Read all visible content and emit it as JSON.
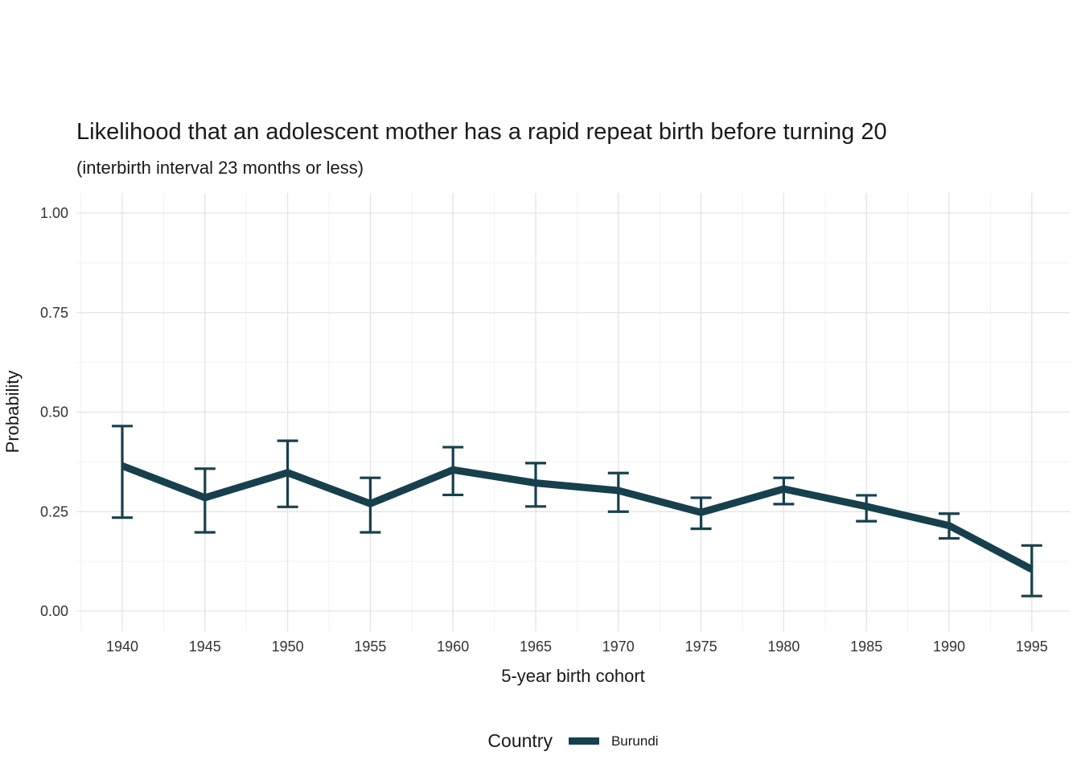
{
  "colors": {
    "background": "#ffffff",
    "grid_major": "#e3e3e3",
    "grid_minor": "#f2f2f2",
    "title_text": "#1a1a1a",
    "tick_text": "#333333"
  },
  "chart_data": {
    "type": "line",
    "title": "Likelihood that an adolescent mother has a rapid repeat birth before turning 20",
    "subtitle": "(interbirth interval 23 months or less)",
    "xlabel": "5-year birth cohort",
    "ylabel": "Probability",
    "x": [
      1940,
      1945,
      1950,
      1955,
      1960,
      1965,
      1970,
      1975,
      1980,
      1985,
      1990,
      1995
    ],
    "xtick_labels": [
      "1940",
      "1945",
      "1950",
      "1955",
      "1960",
      "1965",
      "1970",
      "1975",
      "1980",
      "1985",
      "1990",
      "1995"
    ],
    "yticks": [
      0,
      0.25,
      0.5,
      0.75,
      1
    ],
    "ytick_labels": [
      "0.00",
      "0.25",
      "0.50",
      "0.75",
      "1.00"
    ],
    "ylim": [
      0,
      1
    ],
    "grid": "on",
    "error_bars": true,
    "legend": {
      "title": "Country",
      "position": "bottom"
    },
    "series": [
      {
        "name": "Burundi",
        "color": "#17404d",
        "values": [
          0.365,
          0.285,
          0.348,
          0.27,
          0.355,
          0.322,
          0.303,
          0.248,
          0.307,
          0.263,
          0.215,
          0.105
        ],
        "ci_low": [
          0.235,
          0.198,
          0.262,
          0.198,
          0.292,
          0.263,
          0.25,
          0.207,
          0.269,
          0.226,
          0.183,
          0.038
        ],
        "ci_high": [
          0.465,
          0.358,
          0.428,
          0.335,
          0.412,
          0.372,
          0.347,
          0.285,
          0.335,
          0.291,
          0.245,
          0.165
        ]
      }
    ]
  }
}
